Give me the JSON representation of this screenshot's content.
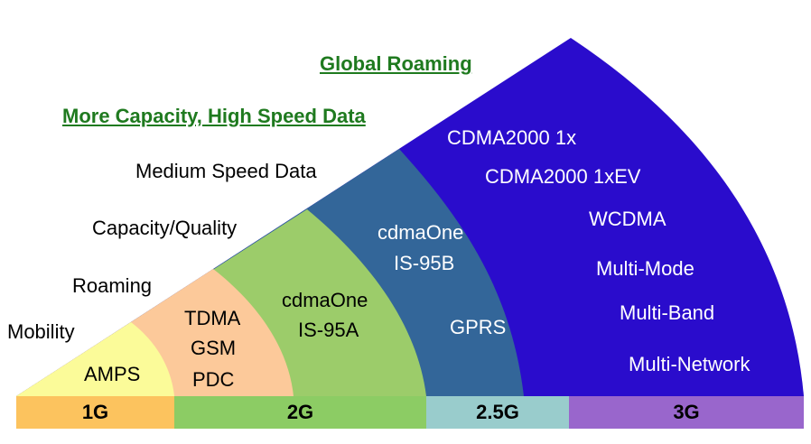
{
  "colors": {
    "gen1": "#fbfb99",
    "gen2a": "#fcc99a",
    "gen2b": "#9ccc6a",
    "gen25": "#336699",
    "gen3": "#2a0ccc",
    "bar_1g": "#fcc35e",
    "bar_2g": "#8ccc64",
    "bar_25g": "#99cccc",
    "bar_3g": "#9966cc",
    "heading": "#1f7a1f"
  },
  "headings": {
    "global_roaming": "Global Roaming",
    "capacity_data": "More Capacity, High Speed Data"
  },
  "features": {
    "medium_speed": "Medium Speed Data",
    "capacity_quality": "Capacity/Quality",
    "roaming": "Roaming",
    "mobility": "Mobility"
  },
  "segments": {
    "gen1": {
      "items": [
        "AMPS"
      ]
    },
    "gen2a": {
      "items": [
        "TDMA",
        "GSM",
        "PDC"
      ]
    },
    "gen2b": {
      "items": [
        "cdmaOne",
        "IS-95A"
      ]
    },
    "gen25": {
      "items": [
        "cdmaOne",
        "IS-95B",
        "GPRS"
      ]
    },
    "gen3": {
      "items": [
        "CDMA2000 1x",
        "CDMA2000 1xEV",
        "WCDMA",
        "Multi-Mode",
        "Multi-Band",
        "Multi-Network"
      ]
    }
  },
  "generations": [
    "1G",
    "2G",
    "2.5G",
    "3G"
  ]
}
